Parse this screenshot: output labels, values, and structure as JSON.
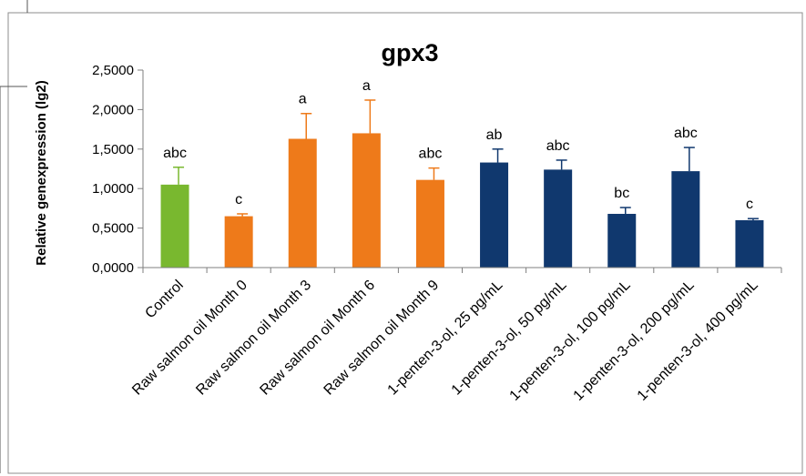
{
  "chart_data": {
    "type": "bar",
    "title": "gpx3",
    "xlabel": "",
    "ylabel": "Relative genexpression (lg2)",
    "ylim": [
      0,
      2.5
    ],
    "yticks": [
      "0,0000",
      "0,5000",
      "1,0000",
      "1,5000",
      "2,0000",
      "2,5000"
    ],
    "categories": [
      "Control",
      "Raw salmon oil Month 0",
      "Raw salmon oil Month 3",
      "Raw salmon oil Month 6",
      "Raw salmon oil Month 9",
      "1-penten-3-ol, 25 pg/mL",
      "1-penten-3-ol, 50 pg/mL",
      "1-penten-3-ol, 100 pg/mL",
      "1-penten-3-ol, 200 pg/mL",
      "1-penten-3-ol, 400 pg/mL"
    ],
    "values": [
      1.05,
      0.65,
      1.63,
      1.7,
      1.11,
      1.33,
      1.24,
      0.68,
      1.22,
      0.6
    ],
    "errors": [
      0.22,
      0.03,
      0.32,
      0.42,
      0.15,
      0.17,
      0.12,
      0.08,
      0.3,
      0.02
    ],
    "letters": [
      "abc",
      "c",
      "a",
      "a",
      "abc",
      "ab",
      "abc",
      "bc",
      "abc",
      "c"
    ],
    "colors": [
      "#79b82f",
      "#ee7a1a",
      "#ee7a1a",
      "#ee7a1a",
      "#ee7a1a",
      "#10386e",
      "#10386e",
      "#10386e",
      "#10386e",
      "#10386e"
    ],
    "grid": false,
    "legend": "none"
  }
}
